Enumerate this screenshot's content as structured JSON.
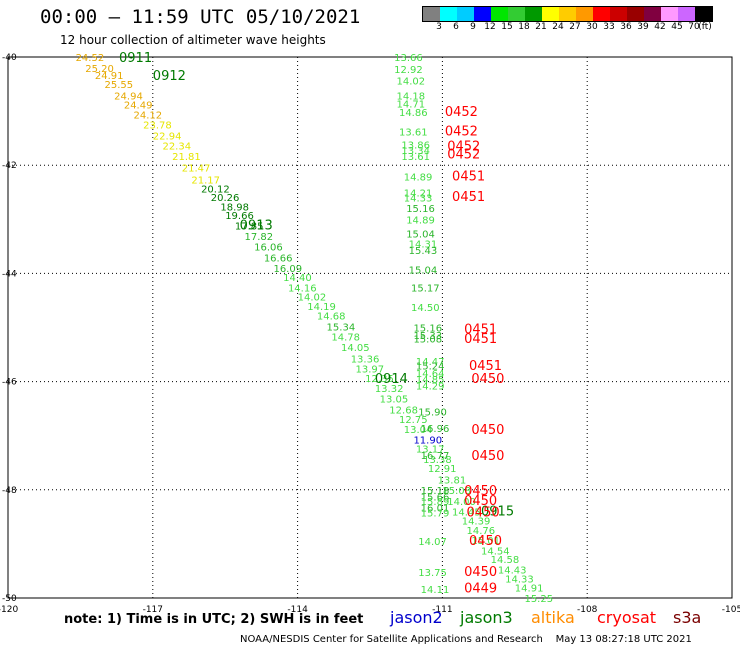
{
  "header": {
    "title": "00:00 – 11:59 UTC 05/10/2021",
    "subtitle": "12 hour collection of altimeter wave heights"
  },
  "colorbar": {
    "colors": [
      "#808080",
      "#00ffff",
      "#00ccff",
      "#0000ff",
      "#00e600",
      "#33cc33",
      "#009900",
      "#ffff00",
      "#ffcc00",
      "#ff9900",
      "#ff0000",
      "#cc0000",
      "#990000",
      "#800040",
      "#ff99ff",
      "#cc66ff",
      "#000000"
    ],
    "labels": [
      "3",
      "6",
      "9",
      "12",
      "15",
      "18",
      "21",
      "24",
      "27",
      "30",
      "33",
      "36",
      "39",
      "42",
      "45",
      "70",
      "(ft)"
    ]
  },
  "note": "note:  1) Time is in UTC; 2) SWH is in feet",
  "satellites": [
    {
      "name": "jason2",
      "color": "#0000cc"
    },
    {
      "name": "jason3",
      "color": "#007a00"
    },
    {
      "name": "altika",
      "color": "#ff8c00"
    },
    {
      "name": "cryosat",
      "color": "#ff0000"
    },
    {
      "name": "s3a",
      "color": "#7a0000"
    }
  ],
  "credit": "NOAA/NESDIS Center for Satellite Applications and Research    May 13 08:27:18 UTC 2021",
  "chart_data": {
    "type": "scatter",
    "xlim": [
      -120,
      -105
    ],
    "ylim": [
      -50,
      -40
    ],
    "x_ticks": [
      "-120",
      "-117",
      "-114",
      "-111",
      "-108",
      "-105"
    ],
    "y_ticks": [
      "-40",
      "-42",
      "-44",
      "-46",
      "-48",
      "-50"
    ],
    "grid": "dotted",
    "colors": {
      "yellow": "#e6e600",
      "orange": "#e6a800",
      "lightgreen": "#44dd44",
      "green": "#2bb52b",
      "darkgreen": "#007a00",
      "blue": "#0000cc",
      "red": "#ff0000"
    },
    "points": [
      {
        "lon": -118.6,
        "lat": -40.0,
        "swh": "24.52",
        "c": "orange"
      },
      {
        "lon": -118.4,
        "lat": -40.2,
        "swh": "25.20",
        "c": "orange"
      },
      {
        "lon": -118.2,
        "lat": -40.33,
        "swh": "24.91",
        "c": "orange"
      },
      {
        "lon": -118.0,
        "lat": -40.5,
        "swh": "25.55",
        "c": "orange"
      },
      {
        "lon": -117.8,
        "lat": -40.71,
        "swh": "24.94",
        "c": "orange"
      },
      {
        "lon": -117.6,
        "lat": -40.88,
        "swh": "24.49",
        "c": "orange"
      },
      {
        "lon": -117.4,
        "lat": -41.06,
        "swh": "24.12",
        "c": "orange"
      },
      {
        "lon": -117.2,
        "lat": -41.25,
        "swh": "23.78",
        "c": "yellow"
      },
      {
        "lon": -117.0,
        "lat": -41.45,
        "swh": "22.94",
        "c": "yellow"
      },
      {
        "lon": -116.8,
        "lat": -41.64,
        "swh": "22.34",
        "c": "yellow"
      },
      {
        "lon": -116.6,
        "lat": -41.83,
        "swh": "21.81",
        "c": "yellow"
      },
      {
        "lon": -116.4,
        "lat": -42.04,
        "swh": "21.47",
        "c": "yellow"
      },
      {
        "lon": -116.2,
        "lat": -42.26,
        "swh": "21.17",
        "c": "yellow"
      },
      {
        "lon": -116.0,
        "lat": -42.43,
        "swh": "20.12",
        "c": "darkgreen"
      },
      {
        "lon": -115.8,
        "lat": -42.59,
        "swh": "20.26",
        "c": "darkgreen"
      },
      {
        "lon": -115.6,
        "lat": -42.76,
        "swh": "18.98",
        "c": "darkgreen"
      },
      {
        "lon": -115.5,
        "lat": -42.92,
        "swh": "19.66",
        "c": "darkgreen"
      },
      {
        "lon": -115.3,
        "lat": -43.11,
        "swh": "17.85",
        "c": "darkgreen"
      },
      {
        "lon": -115.1,
        "lat": -43.31,
        "swh": "17.82",
        "c": "green"
      },
      {
        "lon": -114.9,
        "lat": -43.5,
        "swh": "16.06",
        "c": "green"
      },
      {
        "lon": -114.7,
        "lat": -43.71,
        "swh": "16.66",
        "c": "green"
      },
      {
        "lon": -114.5,
        "lat": -43.9,
        "swh": "16.09",
        "c": "green"
      },
      {
        "lon": -114.3,
        "lat": -44.07,
        "swh": "14.40",
        "c": "lightgreen"
      },
      {
        "lon": -114.2,
        "lat": -44.26,
        "swh": "14.16",
        "c": "lightgreen"
      },
      {
        "lon": -114.0,
        "lat": -44.43,
        "swh": "14.02",
        "c": "lightgreen"
      },
      {
        "lon": -113.8,
        "lat": -44.6,
        "swh": "14.19",
        "c": "lightgreen"
      },
      {
        "lon": -113.6,
        "lat": -44.78,
        "swh": "14.68",
        "c": "lightgreen"
      },
      {
        "lon": -113.4,
        "lat": -44.98,
        "swh": "15.34",
        "c": "green"
      },
      {
        "lon": -113.3,
        "lat": -45.17,
        "swh": "14.78",
        "c": "lightgreen"
      },
      {
        "lon": -113.1,
        "lat": -45.36,
        "swh": "14.05",
        "c": "lightgreen"
      },
      {
        "lon": -112.9,
        "lat": -45.57,
        "swh": "13.36",
        "c": "lightgreen"
      },
      {
        "lon": -112.8,
        "lat": -45.76,
        "swh": "13.97",
        "c": "lightgreen"
      },
      {
        "lon": -112.6,
        "lat": -45.93,
        "swh": "12.35",
        "c": "lightgreen"
      },
      {
        "lon": -112.4,
        "lat": -46.12,
        "swh": "13.32",
        "c": "lightgreen"
      },
      {
        "lon": -112.3,
        "lat": -46.31,
        "swh": "13.05",
        "c": "lightgreen"
      },
      {
        "lon": -112.1,
        "lat": -46.52,
        "swh": "12.68",
        "c": "lightgreen"
      },
      {
        "lon": -111.9,
        "lat": -46.69,
        "swh": "12.75",
        "c": "lightgreen"
      },
      {
        "lon": -111.8,
        "lat": -46.88,
        "swh": "13.04",
        "c": "lightgreen"
      },
      {
        "lon": -111.6,
        "lat": -47.07,
        "swh": "11.90",
        "c": "blue"
      },
      {
        "lon": -111.55,
        "lat": -47.24,
        "swh": "13.17",
        "c": "lightgreen"
      },
      {
        "lon": -111.4,
        "lat": -47.43,
        "swh": "13.38",
        "c": "lightgreen"
      },
      {
        "lon": -111.3,
        "lat": -47.6,
        "swh": "12.91",
        "c": "lightgreen"
      },
      {
        "lon": -111.1,
        "lat": -47.81,
        "swh": "13.81",
        "c": "lightgreen"
      },
      {
        "lon": -111.0,
        "lat": -48.0,
        "swh": "15.08",
        "c": "lightgreen"
      },
      {
        "lon": -110.9,
        "lat": -48.21,
        "swh": "14.00",
        "c": "lightgreen"
      },
      {
        "lon": -110.8,
        "lat": -48.4,
        "swh": "14.45",
        "c": "lightgreen"
      },
      {
        "lon": -110.6,
        "lat": -48.57,
        "swh": "14.39",
        "c": "lightgreen"
      },
      {
        "lon": -110.5,
        "lat": -48.74,
        "swh": "14.76",
        "c": "lightgreen"
      },
      {
        "lon": -110.4,
        "lat": -48.93,
        "swh": "15.01",
        "c": "lightgreen"
      },
      {
        "lon": -110.2,
        "lat": -49.12,
        "swh": "14.54",
        "c": "lightgreen"
      },
      {
        "lon": -110.0,
        "lat": -49.28,
        "swh": "14.58",
        "c": "lightgreen"
      },
      {
        "lon": -109.85,
        "lat": -49.47,
        "swh": "14.43",
        "c": "lightgreen"
      },
      {
        "lon": -109.7,
        "lat": -49.64,
        "swh": "14.33",
        "c": "lightgreen"
      },
      {
        "lon": -109.5,
        "lat": -49.81,
        "swh": "14.91",
        "c": "lightgreen"
      },
      {
        "lon": -109.3,
        "lat": -50.0,
        "swh": "15.25",
        "c": "lightgreen"
      },
      {
        "lon": -112.0,
        "lat": -40.0,
        "swh": "13.66",
        "c": "lightgreen"
      },
      {
        "lon": -112.0,
        "lat": -40.22,
        "swh": "12.92",
        "c": "lightgreen"
      },
      {
        "lon": -111.95,
        "lat": -40.43,
        "swh": "14.02",
        "c": "lightgreen"
      },
      {
        "lon": -111.95,
        "lat": -40.71,
        "swh": "14.18",
        "c": "lightgreen"
      },
      {
        "lon": -111.95,
        "lat": -40.86,
        "swh": "14.71",
        "c": "lightgreen"
      },
      {
        "lon": -111.9,
        "lat": -41.02,
        "swh": "14.86",
        "c": "lightgreen"
      },
      {
        "lon": -111.9,
        "lat": -41.38,
        "swh": "13.61",
        "c": "lightgreen"
      },
      {
        "lon": -111.85,
        "lat": -41.62,
        "swh": "13.86",
        "c": "lightgreen"
      },
      {
        "lon": -111.85,
        "lat": -41.72,
        "swh": "13.34",
        "c": "lightgreen"
      },
      {
        "lon": -111.85,
        "lat": -41.83,
        "swh": "13.61",
        "c": "lightgreen"
      },
      {
        "lon": -111.8,
        "lat": -42.21,
        "swh": "14.89",
        "c": "lightgreen"
      },
      {
        "lon": -111.8,
        "lat": -42.5,
        "swh": "14.21",
        "c": "lightgreen"
      },
      {
        "lon": -111.8,
        "lat": -42.6,
        "swh": "14.33",
        "c": "lightgreen"
      },
      {
        "lon": -111.75,
        "lat": -42.79,
        "swh": "15.16",
        "c": "green"
      },
      {
        "lon": -111.75,
        "lat": -43.0,
        "swh": "14.89",
        "c": "lightgreen"
      },
      {
        "lon": -111.75,
        "lat": -43.26,
        "swh": "15.04",
        "c": "green"
      },
      {
        "lon": -111.7,
        "lat": -43.45,
        "swh": "14.31",
        "c": "lightgreen"
      },
      {
        "lon": -111.7,
        "lat": -43.57,
        "swh": "15.43",
        "c": "green"
      },
      {
        "lon": -111.7,
        "lat": -43.93,
        "swh": "15.04",
        "c": "green"
      },
      {
        "lon": -111.65,
        "lat": -44.26,
        "swh": "15.17",
        "c": "green"
      },
      {
        "lon": -111.65,
        "lat": -44.62,
        "swh": "14.50",
        "c": "lightgreen"
      },
      {
        "lon": -111.6,
        "lat": -45.0,
        "swh": "15.16",
        "c": "green"
      },
      {
        "lon": -111.6,
        "lat": -45.14,
        "swh": "15.33",
        "c": "green"
      },
      {
        "lon": -111.6,
        "lat": -45.2,
        "swh": "15.08",
        "c": "green"
      },
      {
        "lon": -111.55,
        "lat": -45.62,
        "swh": "14.47",
        "c": "lightgreen"
      },
      {
        "lon": -111.55,
        "lat": -45.7,
        "swh": "15.24",
        "c": "green"
      },
      {
        "lon": -111.55,
        "lat": -45.84,
        "swh": "14.64",
        "c": "lightgreen"
      },
      {
        "lon": -111.55,
        "lat": -45.95,
        "swh": "14.85",
        "c": "lightgreen"
      },
      {
        "lon": -111.55,
        "lat": -46.07,
        "swh": "14.29",
        "c": "lightgreen"
      },
      {
        "lon": -111.5,
        "lat": -46.55,
        "swh": "15.90",
        "c": "green"
      },
      {
        "lon": -111.45,
        "lat": -46.86,
        "swh": "16.96",
        "c": "green"
      },
      {
        "lon": -111.45,
        "lat": -47.36,
        "swh": "16.77",
        "c": "green"
      },
      {
        "lon": -111.45,
        "lat": -48.0,
        "swh": "15.18",
        "c": "green"
      },
      {
        "lon": -111.45,
        "lat": -48.12,
        "swh": "15.66",
        "c": "green"
      },
      {
        "lon": -111.45,
        "lat": -48.21,
        "swh": "15.89",
        "c": "lightgreen"
      },
      {
        "lon": -111.45,
        "lat": -48.33,
        "swh": "16.01",
        "c": "green"
      },
      {
        "lon": -111.45,
        "lat": -48.42,
        "swh": "15.79",
        "c": "lightgreen"
      },
      {
        "lon": -111.5,
        "lat": -48.95,
        "swh": "14.07",
        "c": "lightgreen"
      },
      {
        "lon": -111.5,
        "lat": -49.52,
        "swh": "13.75",
        "c": "lightgreen"
      },
      {
        "lon": -111.45,
        "lat": -49.83,
        "swh": "14.11",
        "c": "lightgreen"
      }
    ],
    "time_labels": [
      {
        "lon": -117.7,
        "lat": -40.0,
        "text": "0911",
        "c": "darkgreen"
      },
      {
        "lon": -117.0,
        "lat": -40.33,
        "text": "0912",
        "c": "darkgreen"
      },
      {
        "lon": -115.2,
        "lat": -43.1,
        "text": "0913",
        "c": "darkgreen"
      },
      {
        "lon": -112.4,
        "lat": -45.93,
        "text": "0914",
        "c": "darkgreen"
      },
      {
        "lon": -110.2,
        "lat": -48.38,
        "text": "0915",
        "c": "darkgreen"
      },
      {
        "lon": -110.95,
        "lat": -41.0,
        "text": "0452",
        "c": "red"
      },
      {
        "lon": -110.95,
        "lat": -41.36,
        "text": "0452",
        "c": "red"
      },
      {
        "lon": -110.9,
        "lat": -41.64,
        "text": "0452",
        "c": "red"
      },
      {
        "lon": -110.9,
        "lat": -41.78,
        "text": "0452",
        "c": "red"
      },
      {
        "lon": -110.8,
        "lat": -42.19,
        "text": "0451",
        "c": "red"
      },
      {
        "lon": -110.8,
        "lat": -42.57,
        "text": "0451",
        "c": "red"
      },
      {
        "lon": -110.55,
        "lat": -45.02,
        "text": "0451",
        "c": "red"
      },
      {
        "lon": -110.55,
        "lat": -45.19,
        "text": "0451",
        "c": "red"
      },
      {
        "lon": -110.45,
        "lat": -45.69,
        "text": "0451",
        "c": "red"
      },
      {
        "lon": -110.4,
        "lat": -45.93,
        "text": "0450",
        "c": "red"
      },
      {
        "lon": -110.4,
        "lat": -46.88,
        "text": "0450",
        "c": "red"
      },
      {
        "lon": -110.4,
        "lat": -47.36,
        "text": "0450",
        "c": "red"
      },
      {
        "lon": -110.55,
        "lat": -48.0,
        "text": "0450",
        "c": "red"
      },
      {
        "lon": -110.55,
        "lat": -48.19,
        "text": "0450",
        "c": "red"
      },
      {
        "lon": -110.5,
        "lat": -48.4,
        "text": "0450",
        "c": "red"
      },
      {
        "lon": -110.45,
        "lat": -48.93,
        "text": "0450",
        "c": "red"
      },
      {
        "lon": -110.55,
        "lat": -49.5,
        "text": "0450",
        "c": "red"
      },
      {
        "lon": -110.55,
        "lat": -49.81,
        "text": "0449",
        "c": "red"
      }
    ]
  }
}
